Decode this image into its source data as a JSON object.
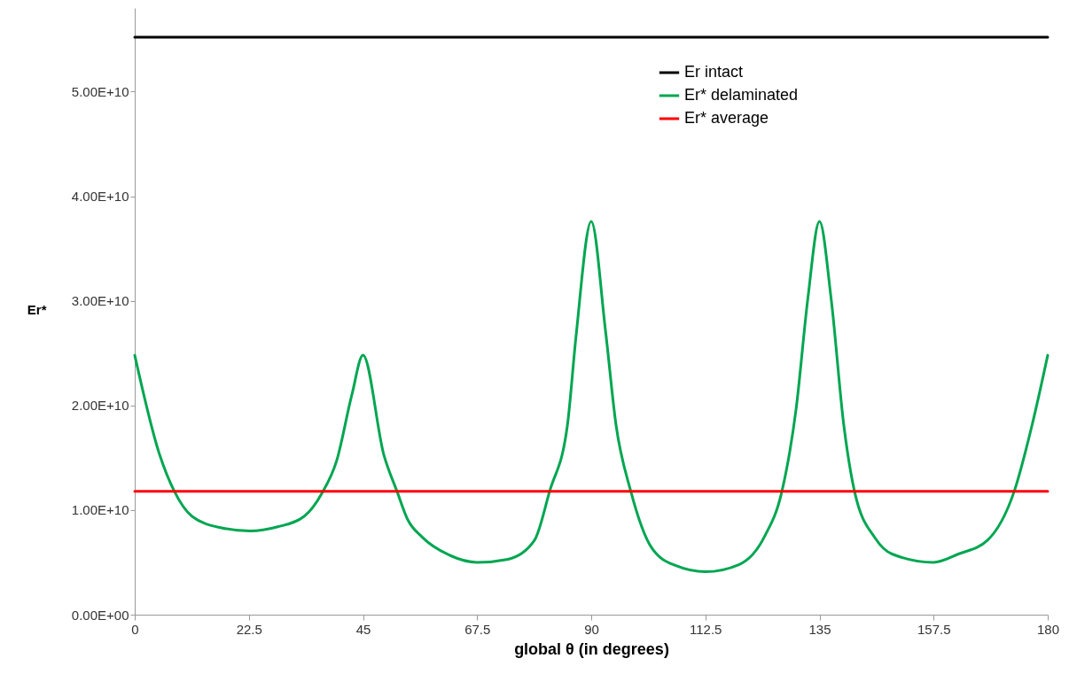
{
  "chart_data": {
    "type": "line",
    "xlabel": "global θ (in degrees)",
    "ylabel": "Er*",
    "legend": "top right",
    "xlim": [
      0,
      180
    ],
    "xticks": [
      0,
      22.5,
      45,
      67.5,
      90,
      112.5,
      135,
      157.5,
      180
    ],
    "ylim": [
      0,
      58000000000.0
    ],
    "yticks": [
      {
        "value": 0,
        "label": "0.00E+00"
      },
      {
        "value": 10000000000.0,
        "label": "1.00E+10"
      },
      {
        "value": 20000000000.0,
        "label": "2.00E+10"
      },
      {
        "value": 30000000000.0,
        "label": "3.00E+10"
      },
      {
        "value": 40000000000.0,
        "label": "4.00E+10"
      },
      {
        "value": 50000000000.0,
        "label": "5.00E+10"
      }
    ],
    "series": [
      {
        "name": "Er intact",
        "color": "#000000",
        "x": [
          0,
          180
        ],
        "values": [
          55200000000.0,
          55200000000.0
        ]
      },
      {
        "name": "Er* delaminated",
        "color": "#00a651",
        "x": [
          0,
          4.9,
          7.8,
          11.3,
          17.1,
          22.7,
          28.2,
          33.4,
          36.9,
          39.8,
          42.8,
          45,
          49.1,
          51.7,
          53.8,
          56.7,
          62,
          67.5,
          73.6,
          78.8,
          81.8,
          85.3,
          87,
          90,
          92.8,
          94.9,
          97.8,
          101.9,
          106.6,
          112.5,
          119.2,
          124.2,
          127.6,
          130.4,
          132.7,
          135,
          137.3,
          139.8,
          141.9,
          146,
          149.3,
          157.5,
          162.4,
          168.1,
          173.4,
          176.9,
          180
        ],
        "values": [
          24800000000.0,
          15300000000.0,
          11800000000.0,
          9400000000.0,
          8300000000.0,
          8000000000.0,
          8400000000.0,
          9400000000.0,
          11600000000.0,
          14700000000.0,
          21000000000.0,
          24800000000.0,
          15300000000.0,
          11800000000.0,
          9100000000.0,
          7400000000.0,
          5700000000.0,
          5000000000.0,
          5300000000.0,
          7100000000.0,
          11800000000.0,
          18100000000.0,
          26600000000.0,
          37600000000.0,
          27200000000.0,
          18100000000.0,
          11800000000.0,
          6400000000.0,
          4700000000.0,
          4100000000.0,
          4800000000.0,
          7500000000.0,
          11800000000.0,
          19700000000.0,
          30200000000.0,
          37600000000.0,
          30200000000.0,
          18100000000.0,
          11800000000.0,
          7300000000.0,
          5800000000.0,
          5000000000.0,
          5800000000.0,
          7100000000.0,
          11800000000.0,
          18100000000.0,
          24800000000.0
        ]
      },
      {
        "name": "Er* average",
        "color": "#ff0000",
        "x": [
          0,
          180
        ],
        "values": [
          11800000000.0,
          11800000000.0
        ]
      }
    ]
  }
}
